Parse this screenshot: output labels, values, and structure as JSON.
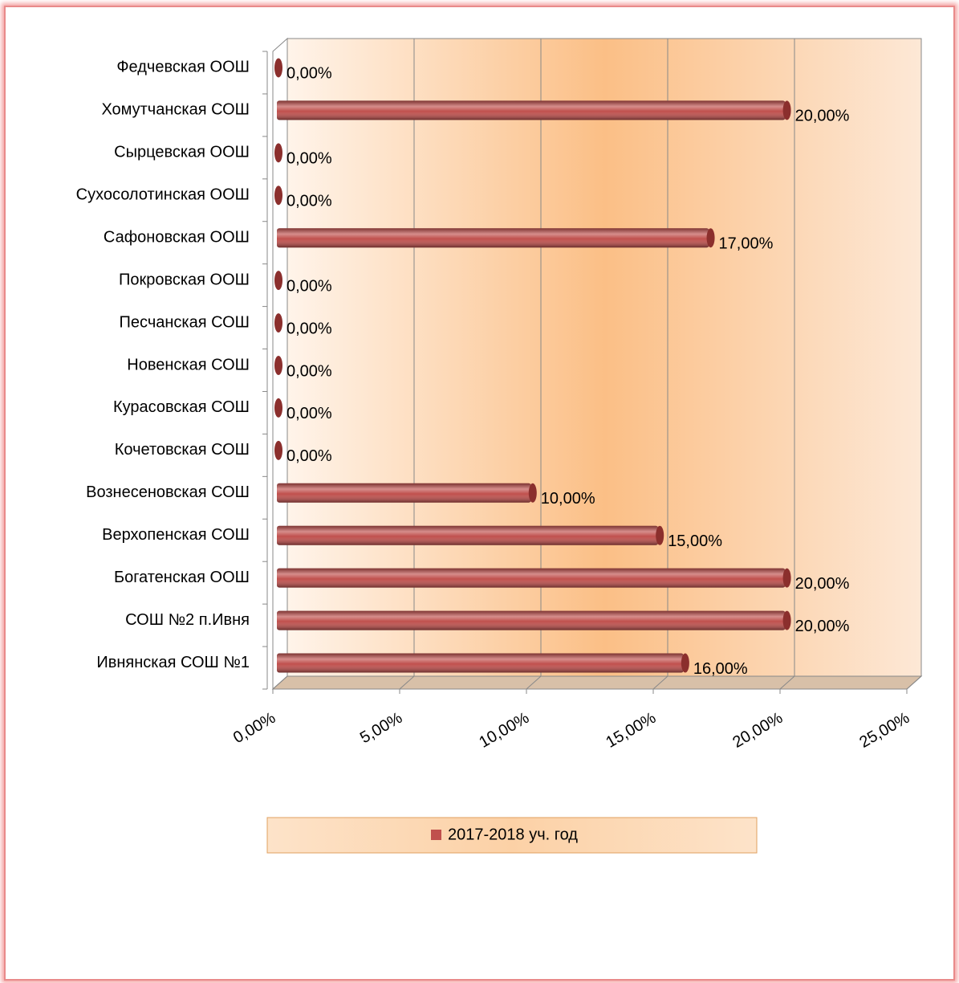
{
  "chart_data": {
    "type": "bar",
    "orientation": "horizontal",
    "categories": [
      "Ивнянская СОШ №1",
      "СОШ №2 п.Ивня",
      "Богатенская ООШ",
      "Верхопенская СОШ",
      "Вознесеновская СОШ",
      "Кочетовская СОШ",
      "Курасовская СОШ",
      "Новенская СОШ",
      "Песчанская СОШ",
      "Покровская ООШ",
      "Сафоновская ООШ",
      "Сухосолотинская ООШ",
      "Сырцевская ООШ",
      "Хомутчанская СОШ",
      "Федчевская ООШ"
    ],
    "series": [
      {
        "name": "2017-2018 уч. год",
        "color": "#c0504d",
        "values": [
          16,
          20,
          20,
          15,
          10,
          0,
          0,
          0,
          0,
          0,
          17,
          0,
          0,
          20,
          0
        ],
        "value_labels": [
          "16,00%",
          "20,00%",
          "20,00%",
          "15,00%",
          "10,00%",
          "0,00%",
          "0,00%",
          "0,00%",
          "0,00%",
          "0,00%",
          "17,00%",
          "0,00%",
          "0,00%",
          "20,00%",
          "0,00%"
        ]
      }
    ],
    "xlim": [
      0,
      25
    ],
    "xticks": [
      {
        "value": 0,
        "label": "0,00%"
      },
      {
        "value": 5,
        "label": "5,00%"
      },
      {
        "value": 10,
        "label": "10,00%"
      },
      {
        "value": 15,
        "label": "15,00%"
      },
      {
        "value": 20,
        "label": "20,00%"
      },
      {
        "value": 25,
        "label": "25,00%"
      }
    ],
    "grid": true,
    "legend": "bottom"
  }
}
